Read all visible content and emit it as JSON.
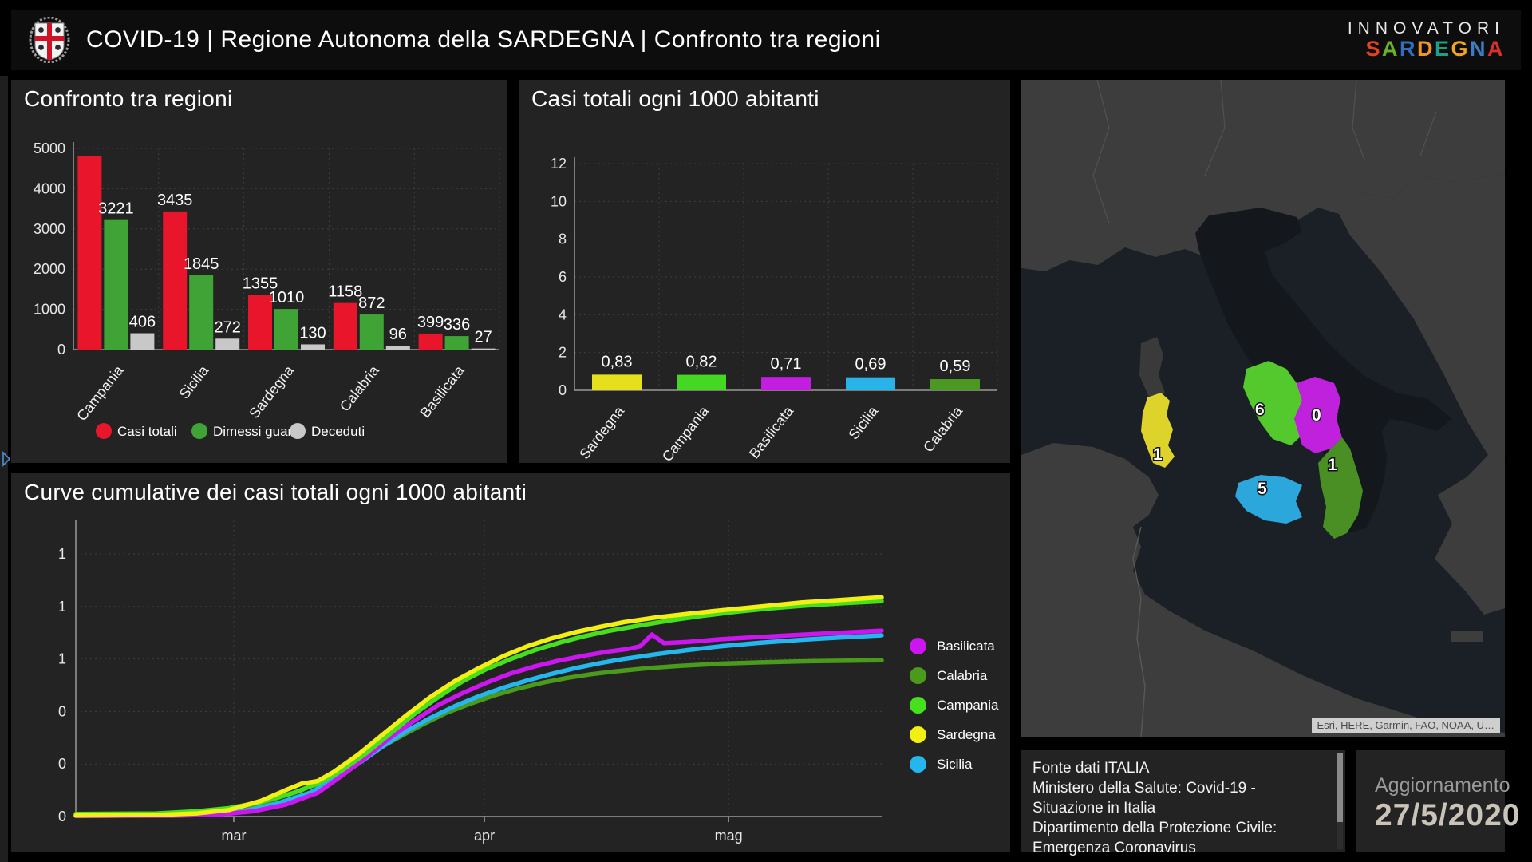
{
  "header": {
    "title": "COVID-19 | Regione Autonoma della SARDEGNA | Confronto tra regioni",
    "logo": "stemma-sardegna-quattro-mori",
    "brand_line1": "INNOVATORI",
    "brand_word2": "SARDEGNA",
    "brand_letters": [
      {
        "ch": "S",
        "color": "#e2421f"
      },
      {
        "ch": "A",
        "color": "#6ab024"
      },
      {
        "ch": "R",
        "color": "#2f6fc0"
      },
      {
        "ch": "D",
        "color": "#ef9623"
      },
      {
        "ch": "E",
        "color": "#1ba089"
      },
      {
        "ch": "G",
        "color": "#f2a71b"
      },
      {
        "ch": "N",
        "color": "#3a7dc2"
      },
      {
        "ch": "A",
        "color": "#d8312a"
      }
    ]
  },
  "chart_data": [
    {
      "type": "bar",
      "title": "Confronto tra regioni",
      "categories": [
        "Campania",
        "Sicilia",
        "Sardegna",
        "Calabria",
        "Basilicata"
      ],
      "series": [
        {
          "name": "Casi totali",
          "color": "#e8152b",
          "values": [
            4820,
            3435,
            1355,
            1158,
            399
          ],
          "labels": [
            "",
            "3435",
            "1355",
            "1158",
            "399"
          ]
        },
        {
          "name": "Dimessi guariti",
          "color": "#3fa335",
          "values": [
            3221,
            1845,
            1010,
            872,
            336
          ],
          "labels": [
            "3221",
            "1845",
            "1010",
            "872",
            "336"
          ]
        },
        {
          "name": "Deceduti",
          "color": "#c8c8c8",
          "values": [
            406,
            272,
            130,
            96,
            27
          ],
          "labels": [
            "406",
            "272",
            "130",
            "96",
            "27"
          ]
        }
      ],
      "ylim": [
        0,
        5000
      ],
      "yticks": [
        0,
        1000,
        2000,
        3000,
        4000,
        5000
      ],
      "grid": true,
      "legend_position": "bottom"
    },
    {
      "type": "bar",
      "title": "Casi totali ogni 1000 abitanti",
      "categories": [
        "Sardegna",
        "Campania",
        "Basilicata",
        "Sicilia",
        "Calabria"
      ],
      "values": [
        0.83,
        0.82,
        0.71,
        0.69,
        0.59
      ],
      "labels": [
        "0,83",
        "0,82",
        "0,71",
        "0,69",
        "0,59"
      ],
      "colors": [
        "#e5df1d",
        "#45d822",
        "#c31ee0",
        "#28b4e8",
        "#4b9822"
      ],
      "ylim": [
        0,
        12
      ],
      "yticks": [
        0,
        2,
        4,
        6,
        8,
        10,
        12
      ],
      "grid": true
    },
    {
      "type": "line",
      "title": "Curve cumulative dei casi totali ogni 1000 abitanti",
      "xticks": [
        {
          "label": "mar",
          "t": 0.196
        },
        {
          "label": "apr",
          "t": 0.507
        },
        {
          "label": "mag",
          "t": 0.81
        }
      ],
      "ylim": [
        0,
        1.12
      ],
      "yticks": [
        {
          "v": 1.0,
          "label": "1"
        },
        {
          "v": 0.8,
          "label": "1"
        },
        {
          "v": 0.6,
          "label": "1"
        },
        {
          "v": 0.4,
          "label": "0"
        },
        {
          "v": 0.2,
          "label": "0"
        },
        {
          "v": 0.0,
          "label": "0"
        }
      ],
      "draw_order": [
        "Calabria",
        "Sicilia",
        "Basilicata",
        "Campania",
        "Sardegna"
      ],
      "series": [
        {
          "name": "Basilicata",
          "color": "#cb16f0",
          "final_value": 0.71,
          "points": [
            [
              0,
              0.002
            ],
            [
              0.12,
              0.003
            ],
            [
              0.18,
              0.008
            ],
            [
              0.22,
              0.02
            ],
            [
              0.26,
              0.045
            ],
            [
              0.3,
              0.09
            ],
            [
              0.33,
              0.155
            ],
            [
              0.36,
              0.225
            ],
            [
              0.39,
              0.3
            ],
            [
              0.42,
              0.365
            ],
            [
              0.45,
              0.425
            ],
            [
              0.48,
              0.47
            ],
            [
              0.51,
              0.51
            ],
            [
              0.54,
              0.545
            ],
            [
              0.57,
              0.572
            ],
            [
              0.6,
              0.594
            ],
            [
              0.63,
              0.612
            ],
            [
              0.66,
              0.628
            ],
            [
              0.685,
              0.638
            ],
            [
              0.7,
              0.648
            ],
            [
              0.715,
              0.693
            ],
            [
              0.73,
              0.66
            ],
            [
              0.76,
              0.665
            ],
            [
              0.8,
              0.675
            ],
            [
              0.85,
              0.684
            ],
            [
              0.9,
              0.692
            ],
            [
              0.95,
              0.7
            ],
            [
              1,
              0.708
            ]
          ]
        },
        {
          "name": "Calabria",
          "color": "#4a9a1c",
          "final_value": 0.59,
          "points": [
            [
              0,
              0.002
            ],
            [
              0.12,
              0.006
            ],
            [
              0.16,
              0.012
            ],
            [
              0.2,
              0.03
            ],
            [
              0.24,
              0.06
            ],
            [
              0.28,
              0.1
            ],
            [
              0.31,
              0.145
            ],
            [
              0.34,
              0.195
            ],
            [
              0.37,
              0.25
            ],
            [
              0.4,
              0.3
            ],
            [
              0.43,
              0.35
            ],
            [
              0.46,
              0.395
            ],
            [
              0.49,
              0.43
            ],
            [
              0.52,
              0.462
            ],
            [
              0.55,
              0.488
            ],
            [
              0.58,
              0.51
            ],
            [
              0.61,
              0.528
            ],
            [
              0.64,
              0.542
            ],
            [
              0.67,
              0.553
            ],
            [
              0.71,
              0.565
            ],
            [
              0.75,
              0.574
            ],
            [
              0.8,
              0.582
            ],
            [
              0.85,
              0.587
            ],
            [
              0.9,
              0.591
            ],
            [
              0.95,
              0.593
            ],
            [
              1,
              0.595
            ]
          ]
        },
        {
          "name": "Campania",
          "color": "#46e01f",
          "final_value": 0.82,
          "points": [
            [
              0,
              0.01
            ],
            [
              0.1,
              0.012
            ],
            [
              0.15,
              0.02
            ],
            [
              0.19,
              0.032
            ],
            [
              0.23,
              0.055
            ],
            [
              0.27,
              0.09
            ],
            [
              0.3,
              0.125
            ],
            [
              0.33,
              0.175
            ],
            [
              0.36,
              0.24
            ],
            [
              0.39,
              0.315
            ],
            [
              0.42,
              0.39
            ],
            [
              0.45,
              0.455
            ],
            [
              0.48,
              0.515
            ],
            [
              0.51,
              0.562
            ],
            [
              0.54,
              0.6
            ],
            [
              0.57,
              0.634
            ],
            [
              0.6,
              0.662
            ],
            [
              0.63,
              0.686
            ],
            [
              0.66,
              0.706
            ],
            [
              0.7,
              0.728
            ],
            [
              0.74,
              0.748
            ],
            [
              0.78,
              0.765
            ],
            [
              0.82,
              0.78
            ],
            [
              0.86,
              0.792
            ],
            [
              0.9,
              0.802
            ],
            [
              0.95,
              0.812
            ],
            [
              1,
              0.82
            ]
          ]
        },
        {
          "name": "Sardegna",
          "color": "#f2ef12",
          "final_value": 0.83,
          "points": [
            [
              0,
              0.004
            ],
            [
              0.1,
              0.006
            ],
            [
              0.15,
              0.012
            ],
            [
              0.19,
              0.025
            ],
            [
              0.23,
              0.06
            ],
            [
              0.26,
              0.1
            ],
            [
              0.28,
              0.125
            ],
            [
              0.3,
              0.135
            ],
            [
              0.32,
              0.17
            ],
            [
              0.35,
              0.235
            ],
            [
              0.38,
              0.31
            ],
            [
              0.41,
              0.385
            ],
            [
              0.44,
              0.455
            ],
            [
              0.47,
              0.515
            ],
            [
              0.5,
              0.565
            ],
            [
              0.53,
              0.61
            ],
            [
              0.56,
              0.648
            ],
            [
              0.59,
              0.678
            ],
            [
              0.62,
              0.702
            ],
            [
              0.65,
              0.722
            ],
            [
              0.68,
              0.74
            ],
            [
              0.72,
              0.758
            ],
            [
              0.76,
              0.772
            ],
            [
              0.8,
              0.785
            ],
            [
              0.85,
              0.8
            ],
            [
              0.9,
              0.815
            ],
            [
              0.95,
              0.825
            ],
            [
              1,
              0.835
            ]
          ]
        },
        {
          "name": "Sicilia",
          "color": "#25b6ed",
          "final_value": 0.69,
          "points": [
            [
              0,
              0.003
            ],
            [
              0.12,
              0.005
            ],
            [
              0.17,
              0.01
            ],
            [
              0.21,
              0.022
            ],
            [
              0.25,
              0.05
            ],
            [
              0.29,
              0.09
            ],
            [
              0.32,
              0.14
            ],
            [
              0.35,
              0.2
            ],
            [
              0.38,
              0.265
            ],
            [
              0.41,
              0.325
            ],
            [
              0.44,
              0.375
            ],
            [
              0.47,
              0.42
            ],
            [
              0.5,
              0.458
            ],
            [
              0.53,
              0.49
            ],
            [
              0.56,
              0.518
            ],
            [
              0.59,
              0.543
            ],
            [
              0.62,
              0.565
            ],
            [
              0.65,
              0.584
            ],
            [
              0.68,
              0.6
            ],
            [
              0.72,
              0.618
            ],
            [
              0.76,
              0.634
            ],
            [
              0.8,
              0.648
            ],
            [
              0.85,
              0.662
            ],
            [
              0.9,
              0.673
            ],
            [
              0.95,
              0.682
            ],
            [
              1,
              0.69
            ]
          ]
        }
      ],
      "legend_position": "right"
    }
  ],
  "map": {
    "attribution": "Esri, HERE, Garmin, FAO, NOAA, U…",
    "regions": [
      {
        "name": "Sardegna",
        "value": "1",
        "color": "#ddd32a"
      },
      {
        "name": "Campania",
        "value": "6",
        "color": "#54c92d"
      },
      {
        "name": "Basilicata",
        "value": "0",
        "color": "#bf21dd"
      },
      {
        "name": "Sicilia",
        "value": "5",
        "color": "#2ba7dc"
      },
      {
        "name": "Calabria",
        "value": "1",
        "color": "#4a8f23"
      }
    ]
  },
  "fonte": {
    "lines": [
      "Fonte dati ITALIA",
      "Ministero della Salute: Covid-19 - Situazione in Italia",
      "Dipartimento della Protezione Civile: Emergenza Coronavirus"
    ]
  },
  "update": {
    "label": "Aggiornamento",
    "date": "27/5/2020"
  }
}
